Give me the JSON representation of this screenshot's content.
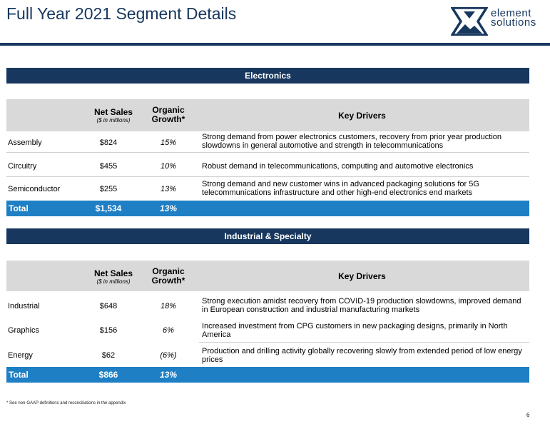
{
  "header": {
    "title": "Full Year 2021 Segment Details",
    "logo_line1": "element",
    "logo_line2": "solutions",
    "brand_color": "#17375e"
  },
  "columns": {
    "net_sales": "Net Sales",
    "net_sales_sub": "($ in millions)",
    "organic_growth": "Organic Growth*",
    "key_drivers": "Key Drivers"
  },
  "electronics": {
    "section_title": "Electronics",
    "rows": [
      {
        "segment": "Assembly",
        "sales": "$824",
        "growth": "15%",
        "drivers": "Strong demand from power electronics customers, recovery from prior year production slowdowns in general automotive and strength in telecommunications"
      },
      {
        "segment": "Circuitry",
        "sales": "$455",
        "growth": "10%",
        "drivers": "Robust demand in telecommunications, computing and automotive electronics"
      },
      {
        "segment": "Semiconductor",
        "sales": "$255",
        "growth": "13%",
        "drivers": "Strong demand and new customer wins in advanced packaging solutions for 5G telecommunications infrastructure and other high-end electronics end markets"
      }
    ],
    "total": {
      "label": "Total",
      "sales": "$1,534",
      "growth": "13%"
    }
  },
  "industrial": {
    "section_title": "Industrial & Specialty",
    "rows": [
      {
        "segment": "Industrial",
        "sales": "$648",
        "growth": "18%",
        "drivers": "Strong execution amidst recovery from COVID-19 production slowdowns, improved demand in European construction and industrial manufacturing markets"
      },
      {
        "segment": "Graphics",
        "sales": "$156",
        "growth": "6%",
        "drivers": "Increased investment from CPG customers in new packaging designs, primarily in North America"
      },
      {
        "segment": "Energy",
        "sales": "$62",
        "growth": "(6%)",
        "drivers": "Production and drilling activity globally recovering slowly from extended period of low energy prices"
      }
    ],
    "total": {
      "label": "Total",
      "sales": "$866",
      "growth": "13%"
    }
  },
  "footnote": "* See non-GAAP definitions and reconciliations in the appendix",
  "page_number": "6"
}
